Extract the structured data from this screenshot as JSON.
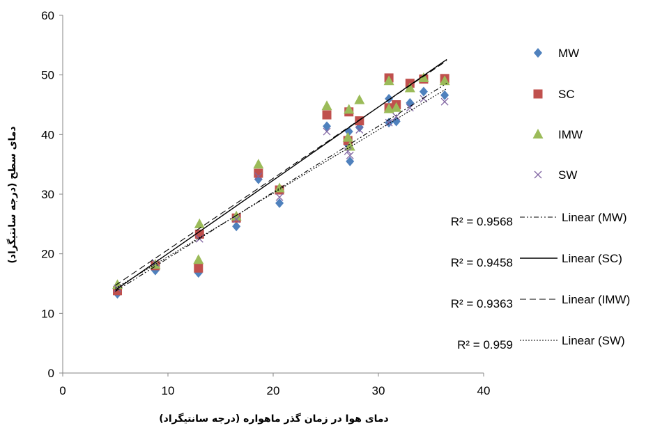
{
  "chart_data": {
    "type": "scatter",
    "xlabel": "دمای هوا در زمان گذر ماهواره (درجه سانتیگراد)",
    "ylabel": "دمای سطح (درجه سانتیگراد)",
    "xlim": [
      0,
      40
    ],
    "ylim": [
      0,
      60
    ],
    "x_ticks": [
      "0",
      "10",
      "20",
      "30",
      "40"
    ],
    "y_ticks": [
      "0",
      "10",
      "20",
      "30",
      "40",
      "50",
      "60"
    ],
    "grid": false,
    "legend_position": "right",
    "series": [
      {
        "name": "MW",
        "marker": "diamond",
        "color": "#4F81BD",
        "points": [
          [
            5.2,
            13.3
          ],
          [
            8.8,
            17.2
          ],
          [
            12.9,
            16.8
          ],
          [
            16.5,
            24.6
          ],
          [
            18.6,
            32.5
          ],
          [
            20.6,
            28.5
          ],
          [
            25.1,
            41.4
          ],
          [
            27.1,
            38.3
          ],
          [
            27.2,
            40.5
          ],
          [
            27.3,
            35.5
          ],
          [
            28.2,
            41.2
          ],
          [
            31.0,
            42.0
          ],
          [
            31.0,
            46.0
          ],
          [
            31.7,
            42.2
          ],
          [
            33.0,
            45.3
          ],
          [
            34.3,
            47.2
          ],
          [
            36.3,
            46.6
          ]
        ]
      },
      {
        "name": "SC",
        "marker": "square",
        "color": "#C0504D",
        "points": [
          [
            5.2,
            13.8
          ],
          [
            8.8,
            18.0
          ],
          [
            12.9,
            17.6
          ],
          [
            13.0,
            23.3
          ],
          [
            16.5,
            26.0
          ],
          [
            18.6,
            33.5
          ],
          [
            20.6,
            30.7
          ],
          [
            25.1,
            43.3
          ],
          [
            27.1,
            39.0
          ],
          [
            27.2,
            43.8
          ],
          [
            28.2,
            42.3
          ],
          [
            31.0,
            49.5
          ],
          [
            31.0,
            44.5
          ],
          [
            31.7,
            45.0
          ],
          [
            33.0,
            48.6
          ],
          [
            34.3,
            49.3
          ],
          [
            36.3,
            49.4
          ]
        ]
      },
      {
        "name": "IMW",
        "marker": "triangle",
        "color": "#9BBB59",
        "points": [
          [
            5.2,
            14.8
          ],
          [
            8.8,
            18.2
          ],
          [
            12.9,
            19.0
          ],
          [
            13.0,
            25.0
          ],
          [
            16.5,
            26.3
          ],
          [
            18.6,
            35.0
          ],
          [
            20.6,
            31.0
          ],
          [
            25.1,
            44.8
          ],
          [
            27.1,
            39.5
          ],
          [
            27.2,
            44.2
          ],
          [
            27.3,
            38.0
          ],
          [
            28.2,
            45.8
          ],
          [
            31.0,
            49.0
          ],
          [
            31.0,
            44.3
          ],
          [
            31.7,
            44.5
          ],
          [
            33.0,
            47.8
          ],
          [
            34.3,
            49.5
          ],
          [
            36.3,
            49.0
          ]
        ]
      },
      {
        "name": "SW",
        "marker": "x",
        "color": "#8064A2",
        "points": [
          [
            5.2,
            14.2
          ],
          [
            8.8,
            18.5
          ],
          [
            13.0,
            22.5
          ],
          [
            16.5,
            25.8
          ],
          [
            18.6,
            33.0
          ],
          [
            20.6,
            29.5
          ],
          [
            25.1,
            40.5
          ],
          [
            27.1,
            37.2
          ],
          [
            27.3,
            36.5
          ],
          [
            28.2,
            40.8
          ],
          [
            31.0,
            42.0
          ],
          [
            31.7,
            43.0
          ],
          [
            33.0,
            44.5
          ],
          [
            34.3,
            46.0
          ],
          [
            36.3,
            45.5
          ]
        ]
      }
    ],
    "trendlines": [
      {
        "name": "Linear (MW)",
        "r2": "R² = 0.9568",
        "style": "dashdot",
        "x": [
          5.0,
          36.5
        ],
        "y": [
          13.7,
          48.6
        ]
      },
      {
        "name": "Linear (SC)",
        "r2": "R² = 0.9458",
        "style": "solid",
        "x": [
          5.0,
          36.5
        ],
        "y": [
          13.9,
          52.6
        ]
      },
      {
        "name": "Linear (IMW)",
        "r2": "R² = 0.9363",
        "style": "dashed",
        "x": [
          5.0,
          36.5
        ],
        "y": [
          14.7,
          52.4
        ]
      },
      {
        "name": "Linear (SW)",
        "r2": "R² = 0.959",
        "style": "dotted",
        "x": [
          5.0,
          36.5
        ],
        "y": [
          14.2,
          47.7
        ]
      }
    ]
  }
}
